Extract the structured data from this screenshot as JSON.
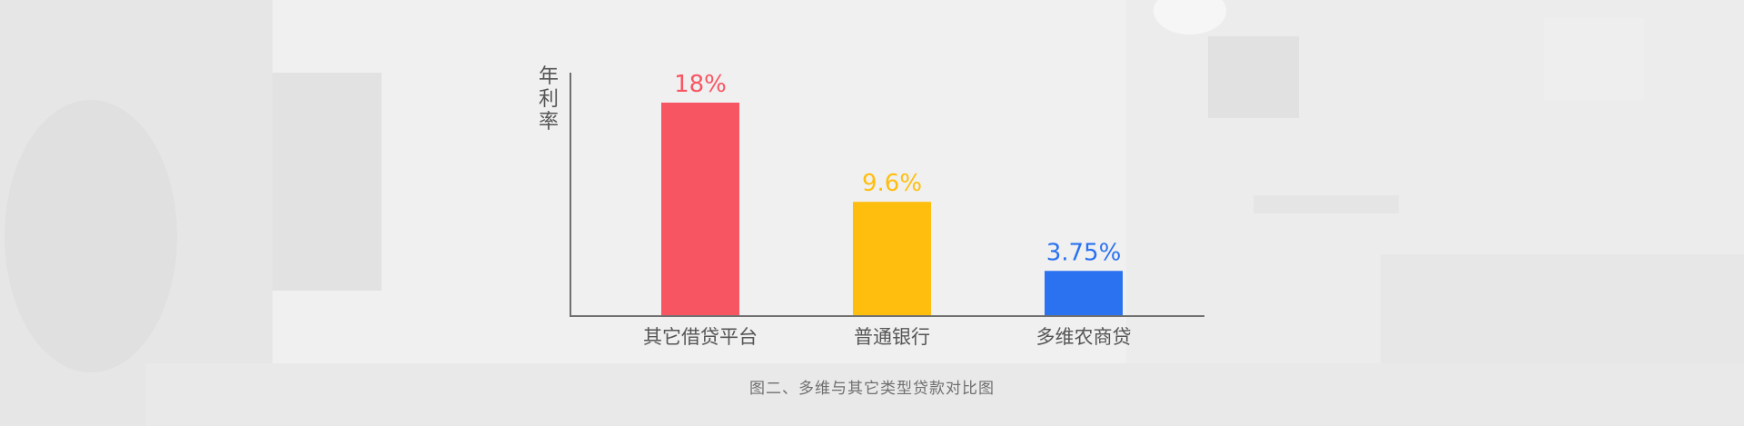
{
  "chart_data": {
    "type": "bar",
    "title": "",
    "xlabel": "",
    "ylabel": "年利率",
    "categories": [
      "其它借贷平台",
      "普通银行",
      "多维农商贷"
    ],
    "values": [
      18,
      9.6,
      3.75
    ],
    "value_labels": [
      "18%",
      "9.6%",
      "3.75%"
    ],
    "colors": [
      "#f85562",
      "#ffbe0e",
      "#2a72f0"
    ],
    "ylim": [
      0,
      20
    ],
    "grid": false,
    "legend": "none"
  },
  "caption": "图二、多维与其它类型贷款对比图"
}
